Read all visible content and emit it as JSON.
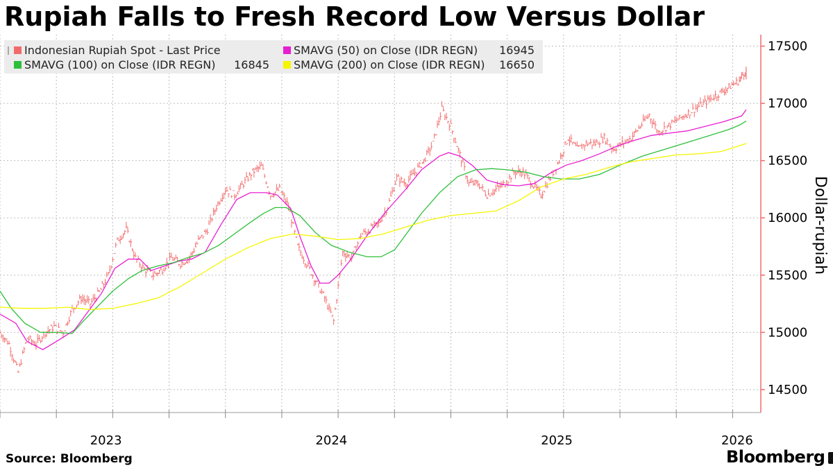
{
  "header": {
    "title": "Rupiah Falls to Fresh Record Low Versus Dollar"
  },
  "footer": {
    "source": "Source: Bloomberg",
    "brand": "Bloomberg"
  },
  "chart_data": {
    "type": "line",
    "title": "Rupiah Falls to Fresh Record Low Versus Dollar",
    "xlabel": "",
    "ylabel": "Dollar-rupiah",
    "ylim": [
      14300,
      17600
    ],
    "yticks": [
      14500,
      15000,
      15500,
      16000,
      16500,
      17000,
      17500
    ],
    "xlim": [
      2022.75,
      2026.125
    ],
    "xticks": [
      {
        "label": "2023",
        "value": 2023.0
      },
      {
        "label": "2024",
        "value": 2024.0
      },
      {
        "label": "2025",
        "value": 2025.0
      },
      {
        "label": "2026",
        "value": 2026.0
      }
    ],
    "grid": true,
    "legend_position": "top-left",
    "series": [
      {
        "name": "Indonesian Rupiah Spot - Last Price",
        "style": "bar",
        "color": "#f26b6b",
        "last_value": "",
        "x": [
          2022.75,
          2022.79,
          2022.83,
          2022.87,
          2022.91,
          2022.95,
          2022.99,
          2023.03,
          2023.07,
          2023.11,
          2023.15,
          2023.19,
          2023.23,
          2023.27,
          2023.31,
          2023.35,
          2023.39,
          2023.43,
          2023.47,
          2023.51,
          2023.55,
          2023.59,
          2023.63,
          2023.67,
          2023.71,
          2023.75,
          2023.79,
          2023.83,
          2023.87,
          2023.91,
          2023.95,
          2023.99,
          2024.03,
          2024.07,
          2024.11,
          2024.15,
          2024.19,
          2024.23,
          2024.27,
          2024.31,
          2024.35,
          2024.39,
          2024.43,
          2024.47,
          2024.51,
          2024.55,
          2024.59,
          2024.63,
          2024.67,
          2024.71,
          2024.75,
          2024.79,
          2024.83,
          2024.87,
          2024.91,
          2024.95,
          2024.99,
          2025.03,
          2025.07,
          2025.11,
          2025.15,
          2025.19,
          2025.23,
          2025.27,
          2025.31,
          2025.35,
          2025.39,
          2025.43,
          2025.47,
          2025.51,
          2025.55,
          2025.59,
          2025.63,
          2025.67,
          2025.71,
          2025.75,
          2025.79,
          2025.83,
          2025.87,
          2025.91,
          2025.95,
          2025.99,
          2026.03,
          2026.06
        ],
        "values": [
          15000,
          14900,
          14650,
          14950,
          14900,
          15000,
          15050,
          15000,
          15200,
          15300,
          15250,
          15350,
          15500,
          15800,
          15900,
          15650,
          15550,
          15500,
          15550,
          15650,
          15600,
          15650,
          15800,
          15900,
          16100,
          16250,
          16200,
          16300,
          16400,
          16450,
          16200,
          16250,
          16100,
          15750,
          15600,
          15450,
          15300,
          15100,
          15700,
          15650,
          15850,
          15900,
          15950,
          16100,
          16350,
          16300,
          16400,
          16500,
          16650,
          16950,
          16800,
          16550,
          16300,
          16300,
          16200,
          16250,
          16300,
          16400,
          16400,
          16300,
          16200,
          16350,
          16500,
          16700,
          16600,
          16650,
          16650,
          16700,
          16600,
          16650,
          16700,
          16800,
          16900,
          16750,
          16800,
          16850,
          16900,
          16950,
          17000,
          17050,
          17100,
          17150,
          17200,
          17300
        ]
      },
      {
        "name": "SMAVG (50)  on Close (IDR REGN)",
        "style": "line",
        "color": "#e81ed1",
        "last_value": "16945",
        "x": [
          2022.75,
          2022.82,
          2022.87,
          2022.94,
          2023.0,
          2023.08,
          2023.14,
          2023.2,
          2023.26,
          2023.32,
          2023.37,
          2023.42,
          2023.48,
          2023.54,
          2023.6,
          2023.66,
          2023.73,
          2023.8,
          2023.86,
          2023.93,
          2023.98,
          2024.04,
          2024.08,
          2024.13,
          2024.17,
          2024.21,
          2024.25,
          2024.3,
          2024.38,
          2024.46,
          2024.55,
          2024.62,
          2024.7,
          2024.74,
          2024.79,
          2024.85,
          2024.91,
          2024.98,
          2025.05,
          2025.12,
          2025.19,
          2025.26,
          2025.33,
          2025.41,
          2025.49,
          2025.57,
          2025.64,
          2025.72,
          2025.8,
          2025.88,
          2025.96,
          2026.04,
          2026.06
        ],
        "values": [
          15160,
          15080,
          14920,
          14850,
          14920,
          15020,
          15180,
          15340,
          15560,
          15640,
          15640,
          15540,
          15580,
          15620,
          15640,
          15700,
          15940,
          16160,
          16220,
          16220,
          16200,
          16080,
          15840,
          15580,
          15430,
          15430,
          15500,
          15620,
          15850,
          16050,
          16250,
          16420,
          16540,
          16570,
          16540,
          16450,
          16330,
          16290,
          16280,
          16300,
          16390,
          16460,
          16500,
          16560,
          16630,
          16680,
          16720,
          16740,
          16760,
          16800,
          16840,
          16890,
          16945
        ]
      },
      {
        "name": "SMAVG (100)  on Close (IDR REGN)",
        "style": "line",
        "color": "#2dbf3a",
        "last_value": "16845",
        "x": [
          2022.75,
          2022.8,
          2022.86,
          2022.93,
          2023.0,
          2023.07,
          2023.12,
          2023.18,
          2023.25,
          2023.32,
          2023.38,
          2023.45,
          2023.52,
          2023.58,
          2023.65,
          2023.72,
          2023.79,
          2023.86,
          2023.92,
          2023.97,
          2024.02,
          2024.08,
          2024.15,
          2024.22,
          2024.3,
          2024.38,
          2024.44,
          2024.5,
          2024.56,
          2024.62,
          2024.7,
          2024.78,
          2024.86,
          2024.93,
          2025.0,
          2025.08,
          2025.16,
          2025.24,
          2025.32,
          2025.41,
          2025.5,
          2025.6,
          2025.7,
          2025.8,
          2025.9,
          2025.98,
          2026.03,
          2026.06
        ],
        "values": [
          15360,
          15210,
          15080,
          15000,
          15000,
          14990,
          15100,
          15220,
          15360,
          15470,
          15540,
          15580,
          15610,
          15650,
          15690,
          15760,
          15860,
          15960,
          16040,
          16090,
          16090,
          16020,
          15870,
          15760,
          15700,
          15660,
          15660,
          15720,
          15880,
          16040,
          16220,
          16360,
          16420,
          16430,
          16420,
          16400,
          16360,
          16340,
          16340,
          16380,
          16460,
          16540,
          16600,
          16660,
          16720,
          16770,
          16810,
          16845
        ]
      },
      {
        "name": "SMAVG (200)  on Close (IDR REGN)",
        "style": "line",
        "color": "#f5f500",
        "last_value": "16650",
        "x": [
          2022.75,
          2022.85,
          2022.95,
          2023.05,
          2023.15,
          2023.25,
          2023.35,
          2023.45,
          2023.55,
          2023.65,
          2023.75,
          2023.85,
          2023.95,
          2024.05,
          2024.15,
          2024.25,
          2024.35,
          2024.45,
          2024.55,
          2024.65,
          2024.75,
          2024.85,
          2024.95,
          2025.05,
          2025.15,
          2025.25,
          2025.35,
          2025.45,
          2025.55,
          2025.65,
          2025.75,
          2025.85,
          2025.95,
          2026.03,
          2026.06
        ],
        "values": [
          15220,
          15210,
          15210,
          15220,
          15200,
          15210,
          15250,
          15300,
          15400,
          15520,
          15640,
          15740,
          15820,
          15860,
          15840,
          15810,
          15820,
          15860,
          15920,
          15980,
          16020,
          16040,
          16060,
          16150,
          16270,
          16340,
          16380,
          16440,
          16490,
          16520,
          16550,
          16560,
          16580,
          16630,
          16650
        ]
      }
    ]
  }
}
